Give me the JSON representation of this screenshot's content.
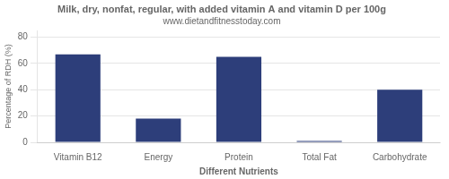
{
  "chart_data": {
    "type": "bar",
    "title": "Milk, dry, nonfat, regular, with added vitamin A and vitamin D per 100g",
    "subtitle": "www.dietandfitnesstoday.com",
    "categories": [
      "Vitamin B12",
      "Energy",
      "Protein",
      "Total Fat",
      "Carbohydrate"
    ],
    "values": [
      67,
      18,
      65,
      1,
      40
    ],
    "color": "#2d3e7a",
    "xlabel": "Different Nutrients",
    "ylabel": "Percentage of RDH (%)",
    "ylim": [
      0,
      85
    ],
    "yticks": [
      0,
      20,
      40,
      60,
      80
    ],
    "grid": true
  }
}
